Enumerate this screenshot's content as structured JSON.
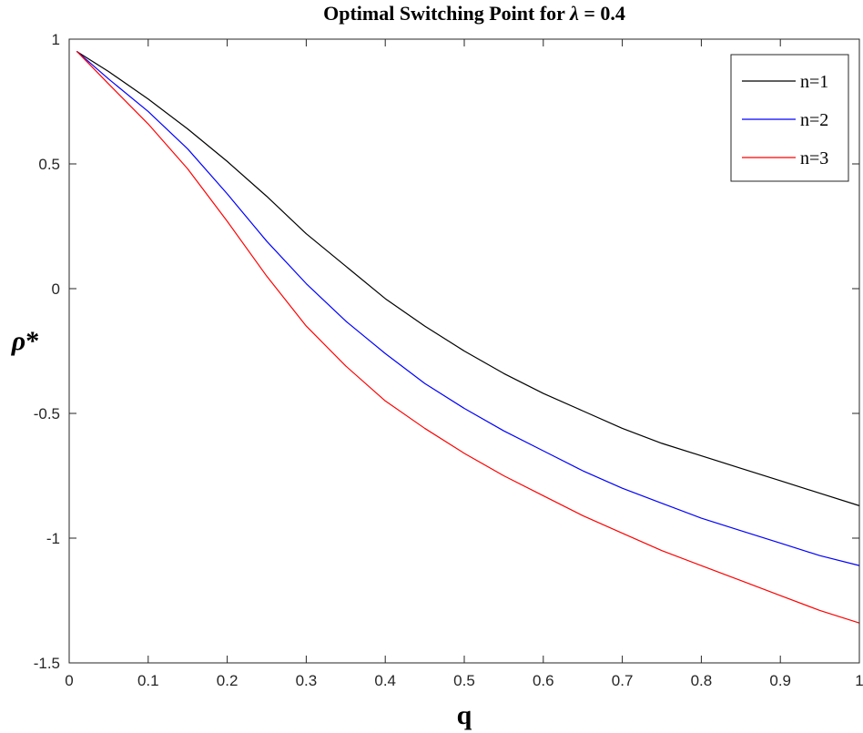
{
  "chart_data": {
    "type": "line",
    "title": "Optimal Switching Point for λ = 0.4",
    "title_main": "Optimal Switching Point for ",
    "title_symbol": "λ",
    "title_tail": " = 0.4",
    "xlabel": "q",
    "ylabel": "ρ*",
    "ylabel_symbol": "ρ",
    "ylabel_suffix": "*",
    "xlim": [
      0,
      1
    ],
    "ylim": [
      -1.5,
      1
    ],
    "xticks": [
      0,
      0.1,
      0.2,
      0.3,
      0.4,
      0.5,
      0.6,
      0.7,
      0.8,
      0.9,
      1
    ],
    "yticks": [
      -1.5,
      -1,
      -0.5,
      0,
      0.5,
      1
    ],
    "xtick_labels": [
      "0",
      "0.1",
      "0.2",
      "0.3",
      "0.4",
      "0.5",
      "0.6",
      "0.7",
      "0.8",
      "0.9",
      "1"
    ],
    "ytick_labels": [
      "-1.5",
      "-1",
      "-0.5",
      "0",
      "0.5",
      "1"
    ],
    "grid": false,
    "legend_position": "top-right",
    "x": [
      0.01,
      0.05,
      0.1,
      0.15,
      0.2,
      0.25,
      0.3,
      0.35,
      0.4,
      0.45,
      0.5,
      0.55,
      0.6,
      0.65,
      0.7,
      0.75,
      0.8,
      0.85,
      0.9,
      0.95,
      1.0
    ],
    "series": [
      {
        "name": "n=1",
        "color": "#000000",
        "values": [
          0.95,
          0.87,
          0.76,
          0.64,
          0.51,
          0.37,
          0.22,
          0.09,
          -0.04,
          -0.15,
          -0.25,
          -0.34,
          -0.42,
          -0.49,
          -0.56,
          -0.62,
          -0.67,
          -0.72,
          -0.77,
          -0.82,
          -0.87
        ]
      },
      {
        "name": "n=2",
        "color": "#0000ff",
        "values": [
          0.95,
          0.84,
          0.71,
          0.56,
          0.38,
          0.19,
          0.02,
          -0.13,
          -0.26,
          -0.38,
          -0.48,
          -0.57,
          -0.65,
          -0.73,
          -0.8,
          -0.86,
          -0.92,
          -0.97,
          -1.02,
          -1.07,
          -1.11
        ]
      },
      {
        "name": "n=3",
        "color": "#ff0000",
        "values": [
          0.95,
          0.82,
          0.66,
          0.48,
          0.27,
          0.05,
          -0.15,
          -0.31,
          -0.45,
          -0.56,
          -0.66,
          -0.75,
          -0.83,
          -0.91,
          -0.98,
          -1.05,
          -1.11,
          -1.17,
          -1.23,
          -1.29,
          -1.34
        ]
      }
    ]
  }
}
